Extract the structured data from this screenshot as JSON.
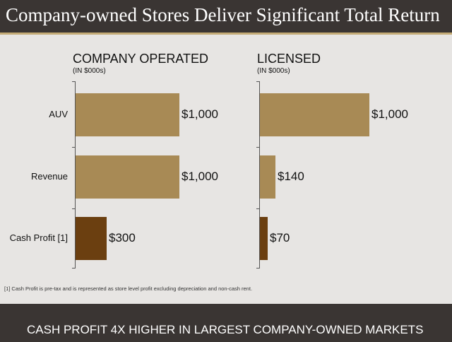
{
  "header": {
    "title": "Company-owned Stores Deliver Significant Total Return"
  },
  "footnote": "[1] Cash Profit is pre-tax and is represented as store level profit excluding depreciation and non-cash rent.",
  "footer": {
    "text": "CASH PROFIT 4X HIGHER IN LARGEST COMPANY-OWNED MARKETS"
  },
  "colors": {
    "bar_main": "#a88a55",
    "bar_profit": "#6b3f10",
    "header_bg": "#3a3533",
    "accent": "#c4ab76"
  },
  "chart_data": [
    {
      "type": "bar",
      "orientation": "horizontal",
      "title": "COMPANY OPERATED",
      "subtitle": "(IN $000s)",
      "categories": [
        "AUV",
        "Revenue",
        "Cash Profit [1]"
      ],
      "values": [
        1000,
        1000,
        300
      ],
      "data_labels": [
        "$1,000",
        "$1,000",
        "$300"
      ],
      "xlim": [
        0,
        1000
      ]
    },
    {
      "type": "bar",
      "orientation": "horizontal",
      "title": "LICENSED",
      "subtitle": "(IN $000s)",
      "categories": [
        "AUV",
        "Revenue",
        "Cash Profit [1]"
      ],
      "values": [
        1000,
        140,
        70
      ],
      "data_labels": [
        "$1,000",
        "$140",
        "$70"
      ],
      "xlim": [
        0,
        1000
      ]
    }
  ]
}
